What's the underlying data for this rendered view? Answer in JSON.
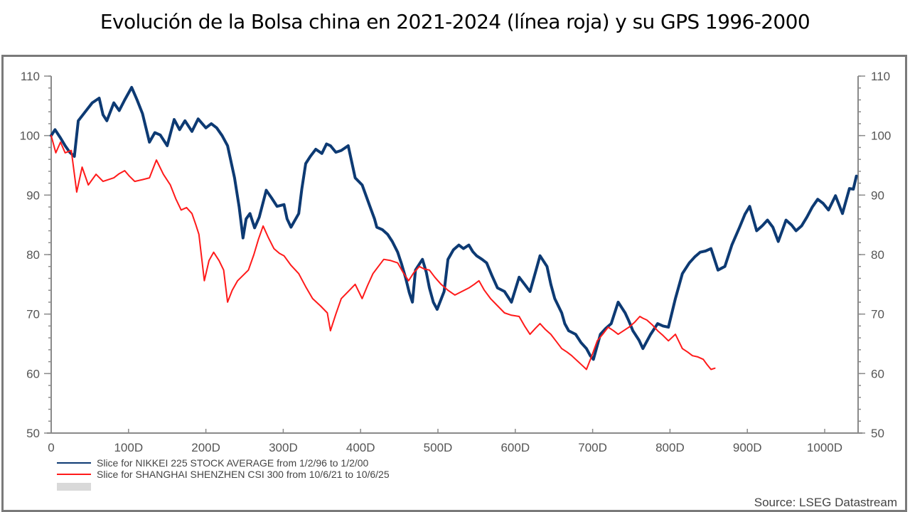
{
  "page": {
    "title": "Evolución de la Bolsa china en 2021-2024 (línea roja) y su GPS 1996-2000"
  },
  "chart_data": {
    "type": "line",
    "title": "Evolución de la Bolsa china en 2021-2024 (línea roja) y su GPS 1996-2000",
    "xlabel": "",
    "ylabel": "",
    "xlim": [
      0,
      1040
    ],
    "ylim": [
      50,
      110
    ],
    "x_ticks": [
      {
        "value": 0,
        "label": "0"
      },
      {
        "value": 100,
        "label": "100D"
      },
      {
        "value": 200,
        "label": "200D"
      },
      {
        "value": 300,
        "label": "300D"
      },
      {
        "value": 400,
        "label": "400D"
      },
      {
        "value": 500,
        "label": "500D"
      },
      {
        "value": 600,
        "label": "600D"
      },
      {
        "value": 700,
        "label": "700D"
      },
      {
        "value": 800,
        "label": "800D"
      },
      {
        "value": 900,
        "label": "900D"
      },
      {
        "value": 1000,
        "label": "1000D"
      }
    ],
    "y_ticks": [
      {
        "value": 50,
        "label": "50"
      },
      {
        "value": 60,
        "label": "60"
      },
      {
        "value": 70,
        "label": "70"
      },
      {
        "value": 80,
        "label": "80"
      },
      {
        "value": 90,
        "label": "90"
      },
      {
        "value": 100,
        "label": "100"
      },
      {
        "value": 110,
        "label": "110"
      }
    ],
    "y_minor_step": 2,
    "dual_y_axis": true,
    "grid": false,
    "legend_position": "bottom-left",
    "source": "Source: LSEG Datastream",
    "series": [
      {
        "name": "Slice for NIKKEI 225 STOCK AVERAGE from 1/2/96 to 1/2/00",
        "color": "#0d3a73",
        "points": [
          [
            0,
            100
          ],
          [
            5,
            101
          ],
          [
            12,
            99.6
          ],
          [
            18,
            98.3
          ],
          [
            24,
            97.2
          ],
          [
            30,
            96.5
          ],
          [
            35,
            102.5
          ],
          [
            44,
            104
          ],
          [
            53,
            105.5
          ],
          [
            62,
            106.3
          ],
          [
            67,
            103.5
          ],
          [
            72,
            102.5
          ],
          [
            81,
            105.5
          ],
          [
            88,
            104.2
          ],
          [
            95,
            106
          ],
          [
            104,
            108.1
          ],
          [
            111,
            106
          ],
          [
            118,
            103.7
          ],
          [
            127,
            98.9
          ],
          [
            134,
            100.5
          ],
          [
            141,
            100.1
          ],
          [
            150,
            98.3
          ],
          [
            159,
            102.7
          ],
          [
            166,
            101
          ],
          [
            173,
            102.5
          ],
          [
            182,
            100.7
          ],
          [
            190,
            102.8
          ],
          [
            200,
            101.3
          ],
          [
            207,
            102
          ],
          [
            214,
            101.3
          ],
          [
            221,
            100
          ],
          [
            228,
            98.3
          ],
          [
            237,
            92.9
          ],
          [
            243,
            88
          ],
          [
            248,
            82.8
          ],
          [
            252,
            86
          ],
          [
            257,
            86.9
          ],
          [
            263,
            84.5
          ],
          [
            269,
            86.3
          ],
          [
            278,
            90.8
          ],
          [
            285,
            89.5
          ],
          [
            292,
            88.1
          ],
          [
            301,
            88.4
          ],
          [
            305,
            86
          ],
          [
            310,
            84.6
          ],
          [
            320,
            86.9
          ],
          [
            324,
            91
          ],
          [
            329,
            95.3
          ],
          [
            335,
            96.5
          ],
          [
            342,
            97.7
          ],
          [
            350,
            97
          ],
          [
            356,
            98.6
          ],
          [
            361,
            98.3
          ],
          [
            368,
            97.2
          ],
          [
            375,
            97.5
          ],
          [
            384,
            98.3
          ],
          [
            393,
            92.9
          ],
          [
            402,
            91.7
          ],
          [
            412,
            88.1
          ],
          [
            418,
            86
          ],
          [
            421,
            84.6
          ],
          [
            428,
            84.2
          ],
          [
            435,
            83.4
          ],
          [
            441,
            82.2
          ],
          [
            448,
            80.4
          ],
          [
            453,
            78.4
          ],
          [
            458,
            76.2
          ],
          [
            463,
            73.6
          ],
          [
            467,
            72
          ],
          [
            471,
            77.4
          ],
          [
            480,
            79.2
          ],
          [
            485,
            77
          ],
          [
            489,
            74.4
          ],
          [
            494,
            72
          ],
          [
            499,
            70.8
          ],
          [
            508,
            73.8
          ],
          [
            513,
            79.2
          ],
          [
            520,
            80.8
          ],
          [
            527,
            81.6
          ],
          [
            533,
            81
          ],
          [
            540,
            81.6
          ],
          [
            545,
            80.5
          ],
          [
            550,
            79.8
          ],
          [
            557,
            79.2
          ],
          [
            563,
            78.6
          ],
          [
            570,
            76.4
          ],
          [
            577,
            74.4
          ],
          [
            586,
            73.8
          ],
          [
            595,
            72
          ],
          [
            605,
            76.2
          ],
          [
            612,
            75
          ],
          [
            619,
            73.8
          ],
          [
            626,
            77
          ],
          [
            632,
            79.8
          ],
          [
            641,
            78
          ],
          [
            646,
            75
          ],
          [
            651,
            72.6
          ],
          [
            660,
            70.2
          ],
          [
            664,
            68.4
          ],
          [
            669,
            67.2
          ],
          [
            678,
            66.6
          ],
          [
            685,
            65.2
          ],
          [
            692,
            64.2
          ],
          [
            697,
            63
          ],
          [
            701,
            62.4
          ],
          [
            710,
            66.6
          ],
          [
            717,
            67.6
          ],
          [
            724,
            68.4
          ],
          [
            733,
            72
          ],
          [
            742,
            70.2
          ],
          [
            747,
            68.8
          ],
          [
            752,
            67.2
          ],
          [
            760,
            65.6
          ],
          [
            765,
            64.2
          ],
          [
            775,
            66.6
          ],
          [
            784,
            68.4
          ],
          [
            791,
            68
          ],
          [
            798,
            67.8
          ],
          [
            807,
            72.6
          ],
          [
            816,
            76.8
          ],
          [
            825,
            78.6
          ],
          [
            832,
            79.6
          ],
          [
            839,
            80.4
          ],
          [
            846,
            80.6
          ],
          [
            853,
            81
          ],
          [
            862,
            77.4
          ],
          [
            871,
            78
          ],
          [
            880,
            81.6
          ],
          [
            890,
            84.6
          ],
          [
            897,
            86.8
          ],
          [
            903,
            88.1
          ],
          [
            912,
            84
          ],
          [
            919,
            84.8
          ],
          [
            926,
            85.8
          ],
          [
            933,
            84.6
          ],
          [
            940,
            82.2
          ],
          [
            945,
            84
          ],
          [
            950,
            85.8
          ],
          [
            957,
            85
          ],
          [
            963,
            84
          ],
          [
            970,
            84.8
          ],
          [
            977,
            86.3
          ],
          [
            984,
            88
          ],
          [
            991,
            89.3
          ],
          [
            998,
            88.6
          ],
          [
            1005,
            87.5
          ],
          [
            1014,
            89.9
          ],
          [
            1023,
            86.9
          ],
          [
            1032,
            91.1
          ],
          [
            1037,
            91
          ],
          [
            1041,
            93.2
          ]
        ]
      },
      {
        "name": "Slice for SHANGHAI SHENZHEN CSI 300 from 10/6/21 to 10/6/25",
        "color": "#ff1a1a",
        "points": [
          [
            0,
            100
          ],
          [
            6,
            97.1
          ],
          [
            12,
            98.9
          ],
          [
            18,
            97.1
          ],
          [
            26,
            97.5
          ],
          [
            33,
            90.5
          ],
          [
            40,
            94.7
          ],
          [
            48,
            91.7
          ],
          [
            58,
            93.5
          ],
          [
            67,
            92.3
          ],
          [
            74,
            92.6
          ],
          [
            81,
            92.9
          ],
          [
            88,
            93.6
          ],
          [
            95,
            94.1
          ],
          [
            101,
            93.2
          ],
          [
            108,
            92.3
          ],
          [
            118,
            92.6
          ],
          [
            127,
            92.9
          ],
          [
            136,
            95.9
          ],
          [
            145,
            93.5
          ],
          [
            154,
            91.7
          ],
          [
            161,
            89.4
          ],
          [
            168,
            87.5
          ],
          [
            175,
            87.9
          ],
          [
            182,
            86.9
          ],
          [
            187,
            85
          ],
          [
            191,
            83.4
          ],
          [
            198,
            75.6
          ],
          [
            204,
            79
          ],
          [
            210,
            80.4
          ],
          [
            217,
            79
          ],
          [
            223,
            77.4
          ],
          [
            228,
            72
          ],
          [
            234,
            74
          ],
          [
            241,
            75.6
          ],
          [
            248,
            76.5
          ],
          [
            255,
            77.4
          ],
          [
            262,
            80
          ],
          [
            268,
            82.6
          ],
          [
            274,
            84.8
          ],
          [
            281,
            82.8
          ],
          [
            288,
            81
          ],
          [
            295,
            80.2
          ],
          [
            301,
            79.8
          ],
          [
            310,
            78.2
          ],
          [
            320,
            76.8
          ],
          [
            329,
            74.6
          ],
          [
            338,
            72.6
          ],
          [
            348,
            71.4
          ],
          [
            357,
            70.2
          ],
          [
            361,
            67.2
          ],
          [
            368,
            70
          ],
          [
            375,
            72.6
          ],
          [
            384,
            73.8
          ],
          [
            393,
            75
          ],
          [
            402,
            72.6
          ],
          [
            409,
            74.8
          ],
          [
            416,
            76.8
          ],
          [
            423,
            78
          ],
          [
            430,
            79.2
          ],
          [
            439,
            79
          ],
          [
            448,
            78.6
          ],
          [
            455,
            77
          ],
          [
            462,
            75.6
          ],
          [
            469,
            77
          ],
          [
            476,
            78
          ],
          [
            482,
            77.6
          ],
          [
            489,
            77.4
          ],
          [
            496,
            76.2
          ],
          [
            504,
            75
          ],
          [
            513,
            74
          ],
          [
            522,
            73.2
          ],
          [
            531,
            73.8
          ],
          [
            540,
            74.4
          ],
          [
            547,
            75
          ],
          [
            553,
            75.6
          ],
          [
            560,
            74
          ],
          [
            568,
            72.6
          ],
          [
            577,
            71.4
          ],
          [
            586,
            70.2
          ],
          [
            595,
            69.8
          ],
          [
            605,
            69.6
          ],
          [
            612,
            68
          ],
          [
            619,
            66.6
          ],
          [
            626,
            67.6
          ],
          [
            632,
            68.4
          ],
          [
            639,
            67.4
          ],
          [
            646,
            66.6
          ],
          [
            653,
            65.4
          ],
          [
            660,
            64.2
          ],
          [
            667,
            63.6
          ],
          [
            673,
            63
          ],
          [
            678,
            62.4
          ],
          [
            683,
            61.8
          ],
          [
            688,
            61.2
          ],
          [
            692,
            60.7
          ],
          [
            699,
            63
          ],
          [
            706,
            65.5
          ],
          [
            713,
            66.6
          ],
          [
            720,
            67.8
          ],
          [
            727,
            67.2
          ],
          [
            733,
            66.6
          ],
          [
            740,
            67.2
          ],
          [
            747,
            67.8
          ],
          [
            754,
            68.6
          ],
          [
            761,
            69.6
          ],
          [
            765,
            69.3
          ],
          [
            770,
            69
          ],
          [
            777,
            68.2
          ],
          [
            784,
            67.2
          ],
          [
            791,
            66.4
          ],
          [
            798,
            65.5
          ],
          [
            807,
            66.6
          ],
          [
            816,
            64.2
          ],
          [
            823,
            63.6
          ],
          [
            829,
            63
          ],
          [
            836,
            62.8
          ],
          [
            843,
            62.4
          ],
          [
            848,
            61.5
          ],
          [
            853,
            60.7
          ],
          [
            858,
            60.9
          ]
        ]
      }
    ],
    "legend_extra_swatch_color": "#d9d9d9"
  }
}
